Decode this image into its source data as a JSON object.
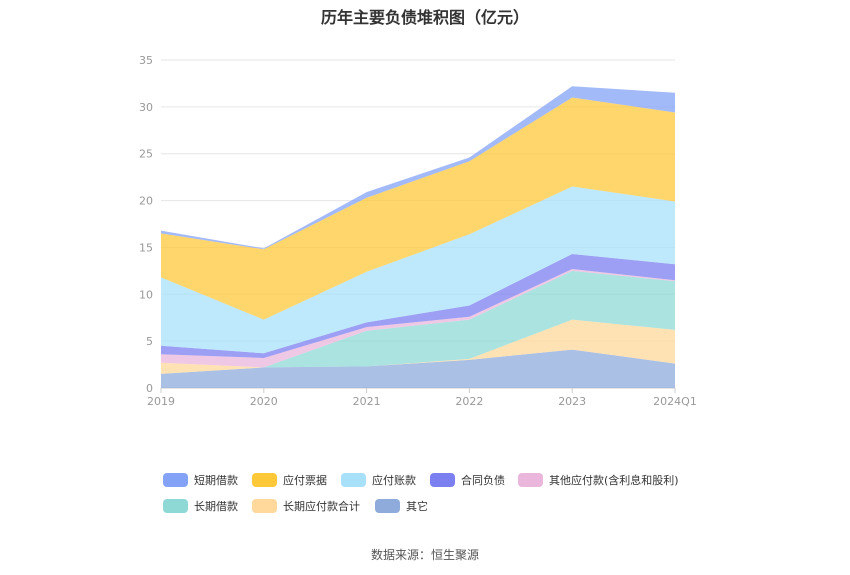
{
  "title": "历年主要负债堆积图（亿元）",
  "source": "数据来源：恒生聚源",
  "chart_data": {
    "type": "area",
    "stacked": true,
    "categories": [
      "2019",
      "2020",
      "2021",
      "2022",
      "2023",
      "2024Q1"
    ],
    "y_ticks": [
      "0",
      "5",
      "10",
      "15",
      "20",
      "25",
      "30",
      "35"
    ],
    "ylim": [
      0,
      35
    ],
    "grid": true,
    "legend_position": "bottom",
    "series": [
      {
        "name": "其它",
        "color": "#8eabdc",
        "values": [
          1.5,
          2.2,
          2.3,
          3.0,
          4.1,
          2.6
        ]
      },
      {
        "name": "长期应付款合计",
        "color": "#ffd89b",
        "values": [
          1.2,
          0.0,
          0.0,
          0.1,
          3.2,
          3.6
        ]
      },
      {
        "name": "长期借款",
        "color": "#8ed9d6",
        "values": [
          0.0,
          0.0,
          3.8,
          4.2,
          5.2,
          5.2
        ]
      },
      {
        "name": "其他应付款(含利息和股利)",
        "color": "#eab6dc",
        "values": [
          0.9,
          1.0,
          0.4,
          0.3,
          0.2,
          0.1
        ]
      },
      {
        "name": "合同负债",
        "color": "#7b7ff0",
        "values": [
          0.9,
          0.5,
          0.5,
          1.2,
          1.6,
          1.7
        ]
      },
      {
        "name": "应付账款",
        "color": "#a8e0fa",
        "values": [
          7.3,
          3.6,
          5.4,
          7.6,
          7.2,
          6.7
        ]
      },
      {
        "name": "应付票据",
        "color": "#ffc839",
        "values": [
          4.7,
          7.5,
          7.9,
          7.8,
          9.5,
          9.5
        ]
      },
      {
        "name": "短期借款",
        "color": "#84a3f7",
        "values": [
          0.3,
          0.1,
          0.6,
          0.4,
          1.2,
          2.1
        ]
      }
    ],
    "legend_order": [
      "短期借款",
      "应付票据",
      "应付账款",
      "合同负债",
      "其他应付款(含利息和股利)",
      "长期借款",
      "长期应付款合计",
      "其它"
    ]
  }
}
